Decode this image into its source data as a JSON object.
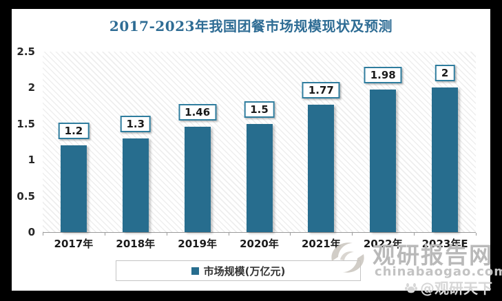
{
  "title": "2017-2023年我国团餐市场规模现状及预测",
  "colors": {
    "frame": "#000000",
    "panel_background": "#ffffff",
    "title": "#2e6c94",
    "bar": "#276d8e",
    "value_box_border": "#2f7d9e",
    "axis_line": "#9a9a9a",
    "axis_text": "#262626",
    "watermark_gray": "#b9b9b9"
  },
  "chart_data": {
    "type": "bar",
    "title": "2017-2023年我国团餐市场规模现状及预测",
    "categories": [
      "2017年",
      "2018年",
      "2019年",
      "2020年",
      "2021年",
      "2022年",
      "2023年E"
    ],
    "values": [
      1.2,
      1.3,
      1.46,
      1.5,
      1.77,
      1.98,
      2
    ],
    "series_name": "市场规模(万亿元)",
    "xlabel": "",
    "ylabel": "",
    "ylim": [
      0,
      2.5
    ],
    "yticks": [
      0,
      0.5,
      1,
      1.5,
      2,
      2.5
    ],
    "grid": false,
    "legend_position": "bottom",
    "plot_background": "diagonal-hatch",
    "bar_color": "#276d8e"
  },
  "legend": {
    "label": "市场规模(万亿元)",
    "marker_color": "#276d8e"
  },
  "watermark": {
    "site_name": "观研报告网",
    "site_url": "chinabaogao.com",
    "handle": "@观研天下"
  }
}
